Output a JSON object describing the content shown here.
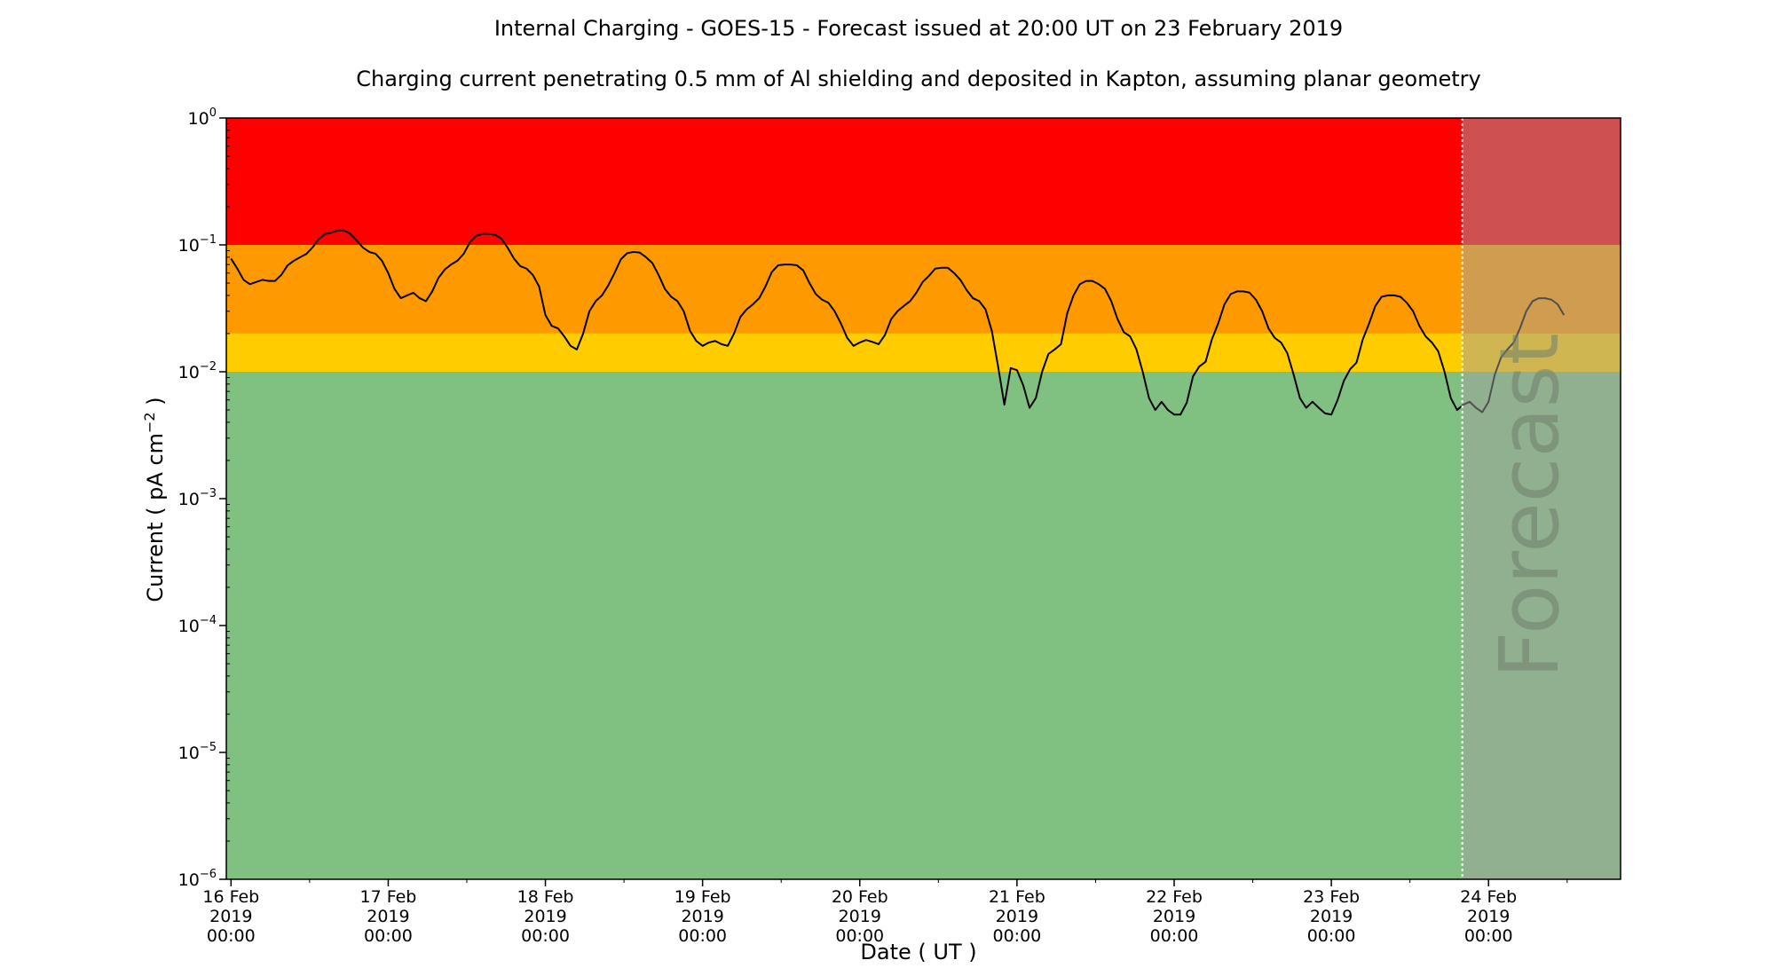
{
  "chart_data": {
    "type": "line",
    "title": "Internal Charging - GOES-15 - Forecast issued at 20:00 UT on 23 February 2019",
    "subtitle": "Charging current penetrating 0.5 mm of Al shielding and deposited in Kapton, assuming planar geometry",
    "xlabel": "Date ( UT )",
    "ylabel": "Current ( pA cm",
    "ylabel_sup": "−2",
    "ylabel_end": " )",
    "yscale": "log",
    "ylim": [
      1e-06,
      1
    ],
    "xlim": [
      -0.03,
      8.84
    ],
    "grid": false,
    "legend": "none",
    "yticks": [
      {
        "value": 1e-06,
        "base": "10",
        "exp": "−6"
      },
      {
        "value": 1e-05,
        "base": "10",
        "exp": "−5"
      },
      {
        "value": 0.0001,
        "base": "10",
        "exp": "−4"
      },
      {
        "value": 0.001,
        "base": "10",
        "exp": "−3"
      },
      {
        "value": 0.01,
        "base": "10",
        "exp": "−2"
      },
      {
        "value": 0.1,
        "base": "10",
        "exp": "−1"
      },
      {
        "value": 1,
        "base": "10",
        "exp": "0"
      }
    ],
    "xticks": [
      {
        "value": 0,
        "lines": [
          "16 Feb",
          "2019",
          "00:00"
        ]
      },
      {
        "value": 1,
        "lines": [
          "17 Feb",
          "2019",
          "00:00"
        ]
      },
      {
        "value": 2,
        "lines": [
          "18 Feb",
          "2019",
          "00:00"
        ]
      },
      {
        "value": 3,
        "lines": [
          "19 Feb",
          "2019",
          "00:00"
        ]
      },
      {
        "value": 4,
        "lines": [
          "20 Feb",
          "2019",
          "00:00"
        ]
      },
      {
        "value": 5,
        "lines": [
          "21 Feb",
          "2019",
          "00:00"
        ]
      },
      {
        "value": 6,
        "lines": [
          "22 Feb",
          "2019",
          "00:00"
        ]
      },
      {
        "value": 7,
        "lines": [
          "23 Feb",
          "2019",
          "00:00"
        ]
      },
      {
        "value": 8,
        "lines": [
          "24 Feb",
          "2019",
          "00:00"
        ]
      }
    ],
    "bands": [
      {
        "from": 0.1,
        "to": 1,
        "color": "#ff0000"
      },
      {
        "from": 0.02,
        "to": 0.1,
        "color": "#ff9900"
      },
      {
        "from": 0.01,
        "to": 0.02,
        "color": "#ffcc00"
      },
      {
        "from": 1e-06,
        "to": 0.01,
        "color": "#80c080"
      }
    ],
    "forecast": {
      "label": "Forecast",
      "start": 7.833,
      "overlay_color": "#a0a0a0",
      "overlay_opacity": 0.5
    },
    "series": [
      {
        "color": "#000000",
        "points": [
          [
            0.0,
            0.078
          ],
          [
            0.04,
            0.065
          ],
          [
            0.08,
            0.053
          ],
          [
            0.12,
            0.049
          ],
          [
            0.16,
            0.051
          ],
          [
            0.2,
            0.053
          ],
          [
            0.24,
            0.052
          ],
          [
            0.28,
            0.052
          ],
          [
            0.32,
            0.058
          ],
          [
            0.36,
            0.069
          ],
          [
            0.4,
            0.075
          ],
          [
            0.44,
            0.08
          ],
          [
            0.48,
            0.085
          ],
          [
            0.52,
            0.096
          ],
          [
            0.56,
            0.112
          ],
          [
            0.6,
            0.122
          ],
          [
            0.64,
            0.125
          ],
          [
            0.68,
            0.13
          ],
          [
            0.72,
            0.13
          ],
          [
            0.76,
            0.122
          ],
          [
            0.8,
            0.108
          ],
          [
            0.84,
            0.095
          ],
          [
            0.88,
            0.088
          ],
          [
            0.92,
            0.085
          ],
          [
            0.96,
            0.075
          ],
          [
            1.0,
            0.06
          ],
          [
            1.04,
            0.045
          ],
          [
            1.08,
            0.038
          ],
          [
            1.12,
            0.04
          ],
          [
            1.16,
            0.042
          ],
          [
            1.2,
            0.038
          ],
          [
            1.24,
            0.036
          ],
          [
            1.28,
            0.043
          ],
          [
            1.32,
            0.055
          ],
          [
            1.36,
            0.064
          ],
          [
            1.4,
            0.07
          ],
          [
            1.44,
            0.075
          ],
          [
            1.48,
            0.085
          ],
          [
            1.52,
            0.105
          ],
          [
            1.56,
            0.118
          ],
          [
            1.6,
            0.122
          ],
          [
            1.64,
            0.122
          ],
          [
            1.68,
            0.12
          ],
          [
            1.72,
            0.112
          ],
          [
            1.76,
            0.095
          ],
          [
            1.8,
            0.078
          ],
          [
            1.84,
            0.068
          ],
          [
            1.88,
            0.065
          ],
          [
            1.92,
            0.058
          ],
          [
            1.96,
            0.047
          ],
          [
            2.0,
            0.028
          ],
          [
            2.04,
            0.023
          ],
          [
            2.08,
            0.022
          ],
          [
            2.12,
            0.019
          ],
          [
            2.16,
            0.016
          ],
          [
            2.2,
            0.015
          ],
          [
            2.24,
            0.02
          ],
          [
            2.28,
            0.03
          ],
          [
            2.32,
            0.036
          ],
          [
            2.36,
            0.04
          ],
          [
            2.4,
            0.048
          ],
          [
            2.44,
            0.06
          ],
          [
            2.48,
            0.077
          ],
          [
            2.52,
            0.086
          ],
          [
            2.56,
            0.088
          ],
          [
            2.6,
            0.087
          ],
          [
            2.64,
            0.08
          ],
          [
            2.68,
            0.072
          ],
          [
            2.72,
            0.058
          ],
          [
            2.76,
            0.045
          ],
          [
            2.8,
            0.039
          ],
          [
            2.84,
            0.036
          ],
          [
            2.88,
            0.03
          ],
          [
            2.92,
            0.021
          ],
          [
            2.96,
            0.0175
          ],
          [
            3.0,
            0.016
          ],
          [
            3.04,
            0.017
          ],
          [
            3.08,
            0.0175
          ],
          [
            3.12,
            0.0165
          ],
          [
            3.16,
            0.016
          ],
          [
            3.2,
            0.02
          ],
          [
            3.24,
            0.027
          ],
          [
            3.28,
            0.031
          ],
          [
            3.32,
            0.034
          ],
          [
            3.36,
            0.038
          ],
          [
            3.4,
            0.047
          ],
          [
            3.44,
            0.061
          ],
          [
            3.48,
            0.069
          ],
          [
            3.52,
            0.07
          ],
          [
            3.56,
            0.07
          ],
          [
            3.6,
            0.069
          ],
          [
            3.64,
            0.063
          ],
          [
            3.68,
            0.05
          ],
          [
            3.72,
            0.041
          ],
          [
            3.76,
            0.037
          ],
          [
            3.8,
            0.035
          ],
          [
            3.84,
            0.03
          ],
          [
            3.88,
            0.024
          ],
          [
            3.92,
            0.0185
          ],
          [
            3.96,
            0.016
          ],
          [
            4.0,
            0.017
          ],
          [
            4.04,
            0.0178
          ],
          [
            4.08,
            0.0172
          ],
          [
            4.12,
            0.0165
          ],
          [
            4.16,
            0.0195
          ],
          [
            4.2,
            0.026
          ],
          [
            4.24,
            0.03
          ],
          [
            4.28,
            0.033
          ],
          [
            4.32,
            0.036
          ],
          [
            4.36,
            0.042
          ],
          [
            4.4,
            0.051
          ],
          [
            4.44,
            0.057
          ],
          [
            4.48,
            0.065
          ],
          [
            4.52,
            0.066
          ],
          [
            4.56,
            0.066
          ],
          [
            4.6,
            0.06
          ],
          [
            4.64,
            0.053
          ],
          [
            4.68,
            0.044
          ],
          [
            4.72,
            0.038
          ],
          [
            4.76,
            0.036
          ],
          [
            4.8,
            0.031
          ],
          [
            4.84,
            0.021
          ],
          [
            4.88,
            0.011
          ],
          [
            4.92,
            0.0055
          ],
          [
            4.96,
            0.0107
          ],
          [
            5.0,
            0.0103
          ],
          [
            5.04,
            0.0078
          ],
          [
            5.08,
            0.0052
          ],
          [
            5.12,
            0.0062
          ],
          [
            5.16,
            0.01
          ],
          [
            5.2,
            0.0138
          ],
          [
            5.24,
            0.015
          ],
          [
            5.28,
            0.0165
          ],
          [
            5.32,
            0.029
          ],
          [
            5.36,
            0.04
          ],
          [
            5.4,
            0.049
          ],
          [
            5.44,
            0.052
          ],
          [
            5.48,
            0.052
          ],
          [
            5.52,
            0.049
          ],
          [
            5.56,
            0.045
          ],
          [
            5.6,
            0.036
          ],
          [
            5.64,
            0.026
          ],
          [
            5.68,
            0.0205
          ],
          [
            5.72,
            0.019
          ],
          [
            5.76,
            0.015
          ],
          [
            5.8,
            0.01
          ],
          [
            5.84,
            0.0062
          ],
          [
            5.88,
            0.005
          ],
          [
            5.92,
            0.0058
          ],
          [
            5.96,
            0.005
          ],
          [
            6.0,
            0.0046
          ],
          [
            6.04,
            0.0046
          ],
          [
            6.08,
            0.0057
          ],
          [
            6.12,
            0.0092
          ],
          [
            6.16,
            0.011
          ],
          [
            6.2,
            0.012
          ],
          [
            6.24,
            0.018
          ],
          [
            6.28,
            0.024
          ],
          [
            6.32,
            0.034
          ],
          [
            6.36,
            0.041
          ],
          [
            6.4,
            0.043
          ],
          [
            6.44,
            0.043
          ],
          [
            6.48,
            0.042
          ],
          [
            6.52,
            0.037
          ],
          [
            6.56,
            0.03
          ],
          [
            6.6,
            0.022
          ],
          [
            6.64,
            0.0185
          ],
          [
            6.68,
            0.017
          ],
          [
            6.72,
            0.014
          ],
          [
            6.76,
            0.0095
          ],
          [
            6.8,
            0.0062
          ],
          [
            6.84,
            0.0052
          ],
          [
            6.88,
            0.0058
          ],
          [
            6.92,
            0.0052
          ],
          [
            6.96,
            0.0047
          ],
          [
            7.0,
            0.0046
          ],
          [
            7.04,
            0.006
          ],
          [
            7.08,
            0.0085
          ],
          [
            7.12,
            0.0105
          ],
          [
            7.16,
            0.0118
          ],
          [
            7.2,
            0.018
          ],
          [
            7.24,
            0.024
          ],
          [
            7.28,
            0.033
          ],
          [
            7.32,
            0.039
          ],
          [
            7.36,
            0.04
          ],
          [
            7.4,
            0.04
          ],
          [
            7.44,
            0.039
          ],
          [
            7.48,
            0.035
          ],
          [
            7.52,
            0.03
          ],
          [
            7.56,
            0.023
          ],
          [
            7.6,
            0.019
          ],
          [
            7.64,
            0.017
          ],
          [
            7.68,
            0.0145
          ],
          [
            7.72,
            0.01
          ],
          [
            7.76,
            0.0062
          ],
          [
            7.8,
            0.005
          ],
          [
            7.84,
            0.0055
          ],
          [
            7.88,
            0.0058
          ],
          [
            7.92,
            0.0052
          ],
          [
            7.96,
            0.0048
          ],
          [
            8.0,
            0.0058
          ],
          [
            8.04,
            0.0095
          ],
          [
            8.08,
            0.013
          ],
          [
            8.12,
            0.015
          ],
          [
            8.16,
            0.017
          ],
          [
            8.2,
            0.022
          ],
          [
            8.24,
            0.03
          ],
          [
            8.28,
            0.036
          ],
          [
            8.32,
            0.038
          ],
          [
            8.36,
            0.038
          ],
          [
            8.4,
            0.037
          ],
          [
            8.44,
            0.034
          ],
          [
            8.48,
            0.028
          ]
        ]
      }
    ]
  }
}
